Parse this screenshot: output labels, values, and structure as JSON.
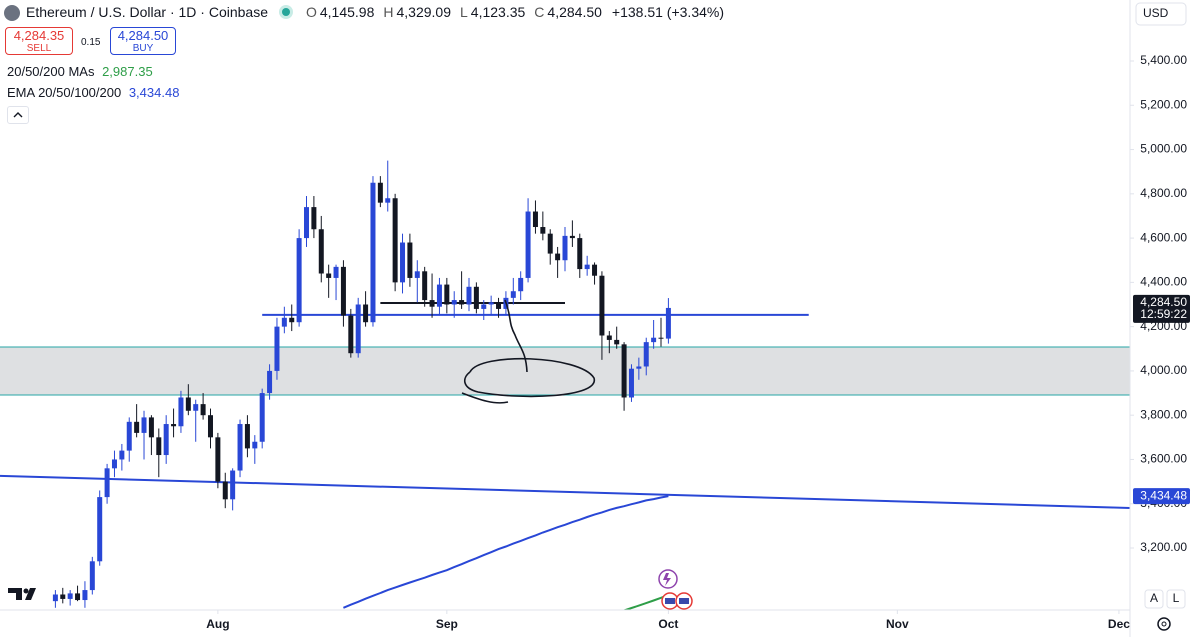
{
  "chart_data": {
    "type": "candlestick",
    "title": "Ethereum / U.S. Dollar · 1D · Coinbase",
    "ohlc_labels": [
      {
        "label": "O",
        "value": "4,145.98"
      },
      {
        "label": "H",
        "value": "4,329.09"
      },
      {
        "label": "L",
        "value": "4,123.35"
      },
      {
        "label": "C",
        "value": "4,284.50"
      }
    ],
    "change": "+138.51 (+3.34%)",
    "up_color": "#2947d6",
    "down_color": "#131722",
    "open": [
      2960,
      2990,
      2970,
      2995,
      2965,
      3010,
      3140,
      3430,
      3560,
      3600,
      3640,
      3770,
      3720,
      3790,
      3700,
      3620,
      3760,
      3750,
      3880,
      3820,
      3850,
      3800,
      3700,
      3500,
      3420,
      3550,
      3760,
      3650,
      3680,
      3900,
      4000,
      4200,
      4240,
      4220,
      4600,
      4740,
      4640,
      4440,
      4420,
      4470,
      4250,
      4080,
      4300,
      4220,
      4850,
      4760,
      4780,
      4400,
      4580,
      4420,
      4450,
      4320,
      4290,
      4390,
      4300,
      4320,
      4300,
      4380,
      4280,
      4300,
      4310,
      4280,
      4330,
      4360,
      4420,
      4720,
      4650,
      4620,
      4530,
      4500,
      4610,
      4600,
      4460,
      4480,
      4430,
      4160,
      4140,
      4120,
      3880,
      4010,
      4020,
      4130,
      4150,
      4145.98
    ],
    "high": [
      3010,
      3020,
      3010,
      3030,
      3050,
      3160,
      3460,
      3580,
      3640,
      3670,
      3790,
      3850,
      3820,
      3800,
      3740,
      3800,
      3830,
      3910,
      3940,
      3870,
      3900,
      3830,
      3720,
      3540,
      3560,
      3780,
      3800,
      3710,
      3920,
      4030,
      4240,
      4290,
      4300,
      4640,
      4790,
      4790,
      4700,
      4480,
      4480,
      4500,
      4280,
      4330,
      4360,
      4880,
      4880,
      4950,
      4800,
      4620,
      4620,
      4500,
      4470,
      4440,
      4420,
      4420,
      4360,
      4450,
      4420,
      4400,
      4320,
      4340,
      4330,
      4360,
      4420,
      4450,
      4780,
      4770,
      4720,
      4640,
      4560,
      4650,
      4680,
      4620,
      4520,
      4490,
      4450,
      4180,
      4200,
      4130,
      4030,
      4060,
      4150,
      4230,
      4240,
      4329.09
    ],
    "low": [
      2930,
      2950,
      2940,
      2960,
      2930,
      2990,
      3120,
      3400,
      3520,
      3550,
      3590,
      3700,
      3600,
      3620,
      3520,
      3580,
      3700,
      3720,
      3800,
      3680,
      3780,
      3650,
      3470,
      3380,
      3370,
      3520,
      3610,
      3580,
      3650,
      3870,
      3960,
      4170,
      4180,
      4200,
      4560,
      4600,
      4400,
      4330,
      4320,
      4200,
      4060,
      4060,
      4200,
      4200,
      4740,
      4720,
      4360,
      4350,
      4380,
      4310,
      4290,
      4240,
      4250,
      4260,
      4240,
      4280,
      4270,
      4260,
      4230,
      4250,
      4240,
      4250,
      4300,
      4320,
      4400,
      4620,
      4590,
      4480,
      4420,
      4450,
      4560,
      4420,
      4430,
      4390,
      4050,
      4080,
      4100,
      3820,
      3860,
      3960,
      3980,
      4100,
      4110,
      4123.35
    ],
    "close": [
      2990,
      2970,
      2995,
      2965,
      3010,
      3140,
      3430,
      3560,
      3600,
      3640,
      3770,
      3720,
      3790,
      3700,
      3620,
      3760,
      3750,
      3880,
      3820,
      3850,
      3800,
      3700,
      3500,
      3420,
      3550,
      3760,
      3650,
      3680,
      3900,
      4000,
      4200,
      4240,
      4220,
      4600,
      4740,
      4640,
      4440,
      4420,
      4470,
      4250,
      4080,
      4300,
      4220,
      4850,
      4760,
      4780,
      4400,
      4580,
      4420,
      4450,
      4320,
      4290,
      4390,
      4300,
      4320,
      4300,
      4380,
      4280,
      4300,
      4310,
      4280,
      4330,
      4360,
      4420,
      4720,
      4650,
      4620,
      4530,
      4500,
      4610,
      4600,
      4460,
      4480,
      4430,
      4160,
      4140,
      4120,
      3880,
      4010,
      4020,
      4130,
      4150,
      4145.98,
      4284.5
    ],
    "series": [
      {
        "name": "20/50/200 MAs",
        "color": "#2e9e48",
        "last_value_label": "2,987.35",
        "values": [
          null,
          null,
          null,
          null,
          null,
          null,
          null,
          null,
          null,
          null,
          null,
          null,
          null,
          null,
          null,
          null,
          null,
          null,
          null,
          null,
          null,
          null,
          null,
          null,
          null,
          null,
          null,
          null,
          null,
          null,
          null,
          null,
          null,
          null,
          null,
          null,
          null,
          null,
          null,
          null,
          null,
          null,
          null,
          null,
          null,
          null,
          null,
          null,
          null,
          null,
          null,
          null,
          null,
          null,
          null,
          null,
          null,
          null,
          null,
          null,
          null,
          null,
          null,
          null,
          null,
          null,
          null,
          null,
          null,
          null,
          null,
          null,
          null,
          null,
          null,
          null,
          null,
          2918,
          2929,
          2940,
          2951,
          2963,
          2975,
          2987.35
        ]
      },
      {
        "name": "EMA 20/50/100/200",
        "color": "#2947d6",
        "last_value_label": "3,434.48",
        "values": [
          null,
          null,
          null,
          null,
          null,
          null,
          null,
          null,
          null,
          null,
          null,
          null,
          null,
          null,
          null,
          null,
          null,
          null,
          null,
          null,
          null,
          null,
          null,
          null,
          null,
          null,
          null,
          null,
          null,
          null,
          null,
          null,
          null,
          null,
          null,
          null,
          null,
          null,
          null,
          2930,
          2944,
          2957,
          2971,
          2984,
          2997,
          3010,
          3021,
          3033,
          3044,
          3055,
          3066,
          3078,
          3089,
          3100,
          3114,
          3127,
          3141,
          3154,
          3168,
          3181,
          3195,
          3207,
          3220,
          3232,
          3245,
          3257,
          3270,
          3282,
          3294,
          3305,
          3317,
          3328,
          3340,
          3351,
          3361,
          3372,
          3381,
          3389,
          3398,
          3406,
          3415,
          3421,
          3428,
          3434.48
        ]
      }
    ],
    "drawings": [
      {
        "x": [
          28,
          102
        ],
        "y": [
          4253,
          4253
        ],
        "color": "#2947d6"
      },
      {
        "x": [
          44,
          69
        ],
        "y": [
          4307,
          4307
        ],
        "color": "#131722"
      },
      {
        "x": [
          -7.5,
          145.5
        ],
        "y": [
          3526,
          3381
        ],
        "color": "#2947d6"
      }
    ],
    "zone": {
      "y": [
        3891,
        4108
      ],
      "color": "#d8dadd",
      "border": "#26a6a6"
    },
    "last_price_label": "4,284.50",
    "countdown": "12:59:22",
    "currency": "USD",
    "xlim": [
      -7.5,
      145.5
    ],
    "xticks": [
      {
        "value": 22,
        "label": "Aug"
      },
      {
        "value": 53,
        "label": "Sep"
      },
      {
        "value": 83,
        "label": "Oct"
      },
      {
        "value": 114,
        "label": "Nov"
      },
      {
        "value": 144,
        "label": "Dec"
      }
    ],
    "ylim": [
      2920,
      5675.5
    ],
    "yticks": [
      {
        "value": 3200,
        "label": "3,200.00"
      },
      {
        "value": 3400,
        "label": "3,400.00"
      },
      {
        "value": 3600,
        "label": "3,600.00"
      },
      {
        "value": 3800,
        "label": "3,800.00"
      },
      {
        "value": 4000,
        "label": "4,000.00"
      },
      {
        "value": 4200,
        "label": "4,200.00"
      },
      {
        "value": 4400,
        "label": "4,400.00"
      },
      {
        "value": 4600,
        "label": "4,600.00"
      },
      {
        "value": 4800,
        "label": "4,800.00"
      },
      {
        "value": 5000,
        "label": "5,000.00"
      },
      {
        "value": 5200,
        "label": "5,200.00"
      },
      {
        "value": 5400,
        "label": "5,400.00"
      }
    ],
    "grid": false
  },
  "trade": {
    "sell_price": "4,284.35",
    "sell": "SELL",
    "spread": "0.15",
    "buy_price": "4,284.50",
    "buy": "BUY"
  },
  "buttons": {
    "auto": "A",
    "log": "L"
  }
}
